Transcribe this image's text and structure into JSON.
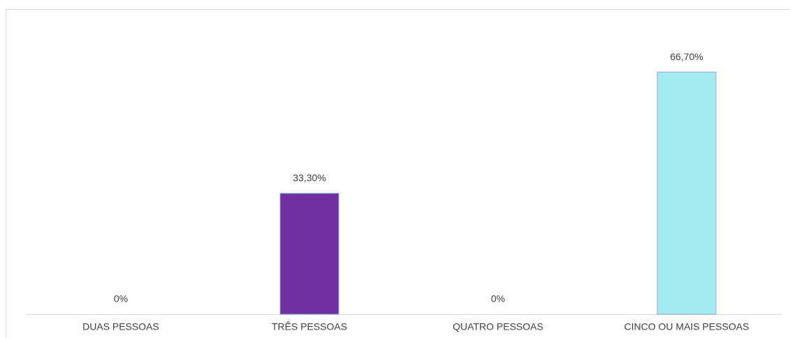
{
  "chart_data": {
    "type": "bar",
    "categories": [
      "DUAS PESSOAS",
      "TRÊS PESSOAS",
      "QUATRO PESSOAS",
      "CINCO OU MAIS PESSOAS"
    ],
    "values": [
      0,
      33.3,
      0,
      66.7
    ],
    "value_labels": [
      "0%",
      "33,30%",
      "0%",
      "66,70%"
    ],
    "colors": [
      null,
      "#7030a0",
      null,
      "#a5eaf0"
    ]
  }
}
